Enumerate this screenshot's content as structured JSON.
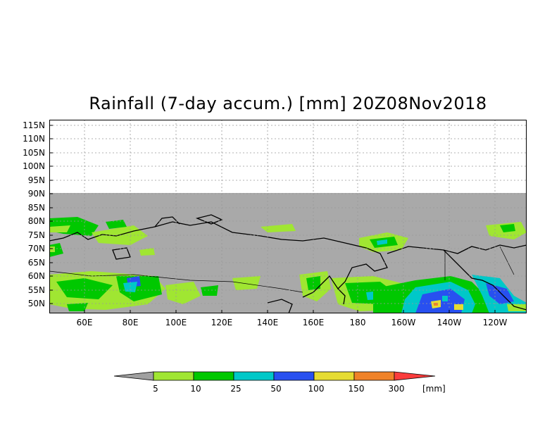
{
  "title": "Rainfall (7-day accum.) [mm] 20Z08Nov2018",
  "lat_labels": [
    "115N",
    "110N",
    "105N",
    "100N",
    "95N",
    "90N",
    "85N",
    "80N",
    "75N",
    "70N",
    "65N",
    "60N",
    "55N",
    "50N"
  ],
  "lon_labels": [
    "60E",
    "80E",
    "100E",
    "120E",
    "140E",
    "160E",
    "180",
    "160W",
    "140W",
    "120W"
  ],
  "colorbar": {
    "unit": "[mm]",
    "thresholds": [
      "5",
      "10",
      "25",
      "50",
      "100",
      "150",
      "300"
    ],
    "colors": [
      "#a0a0a0",
      "#a0e632",
      "#00c800",
      "#00c8c8",
      "#2850f0",
      "#e6dc32",
      "#f08228",
      "#fa3c3c"
    ]
  },
  "colors": {
    "no_data_gray": "#a9a9a9",
    "coast": "#000000",
    "grid": "#999999"
  }
}
